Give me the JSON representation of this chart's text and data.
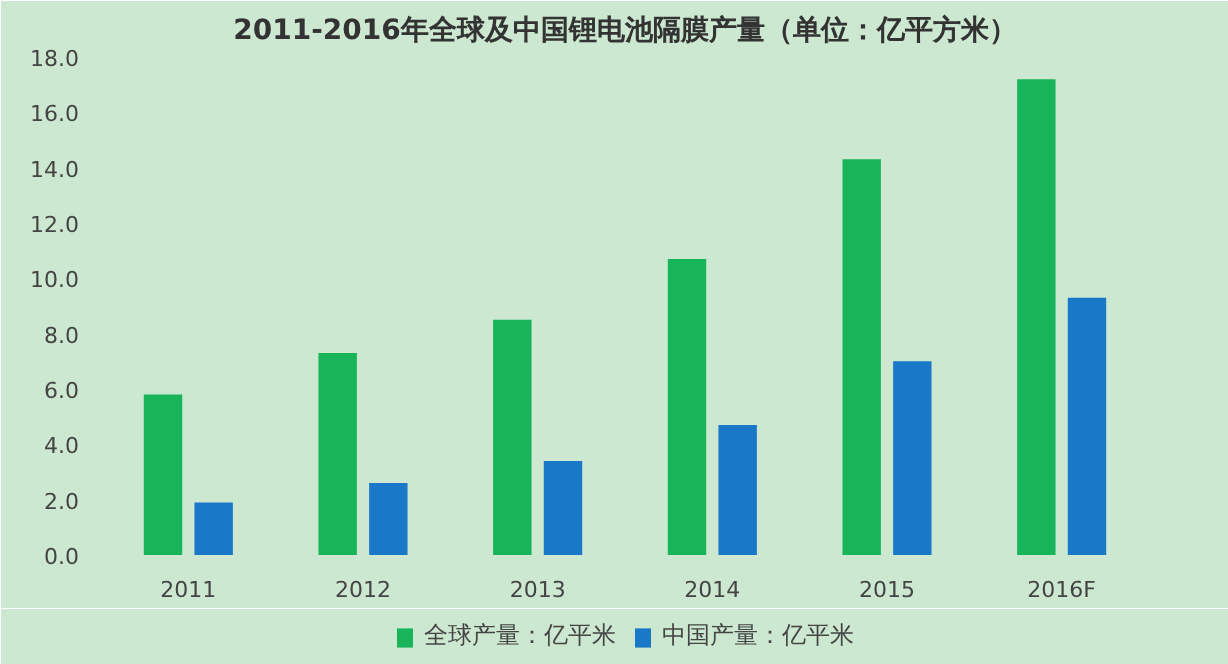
{
  "chart_data": {
    "type": "bar",
    "title": "2011-2016年全球及中国锂电池隔膜产量（单位：亿平方米）",
    "categories": [
      "2011",
      "2012",
      "2013",
      "2014",
      "2015",
      "2016F"
    ],
    "series": [
      {
        "name": "全球产量：亿平米",
        "color": "#17b45a",
        "values": [
          5.8,
          7.3,
          8.5,
          10.7,
          14.3,
          17.2
        ]
      },
      {
        "name": "中国产量：亿平米",
        "color": "#1a78c8",
        "values": [
          1.9,
          2.6,
          3.4,
          4.7,
          7.0,
          9.3
        ]
      }
    ],
    "ylim": [
      0,
      18
    ],
    "yticks": [
      {
        "value": 0,
        "label": "0.0"
      },
      {
        "value": 2,
        "label": "2.0"
      },
      {
        "value": 4,
        "label": "4.0"
      },
      {
        "value": 6,
        "label": "6.0"
      },
      {
        "value": 8,
        "label": "8.0"
      },
      {
        "value": 10,
        "label": "10.0"
      },
      {
        "value": 12,
        "label": "12.0"
      },
      {
        "value": 14,
        "label": "14.0"
      },
      {
        "value": 16,
        "label": "16.0"
      },
      {
        "value": 18,
        "label": "18.0"
      }
    ],
    "grid": false,
    "legend": "bottom"
  }
}
